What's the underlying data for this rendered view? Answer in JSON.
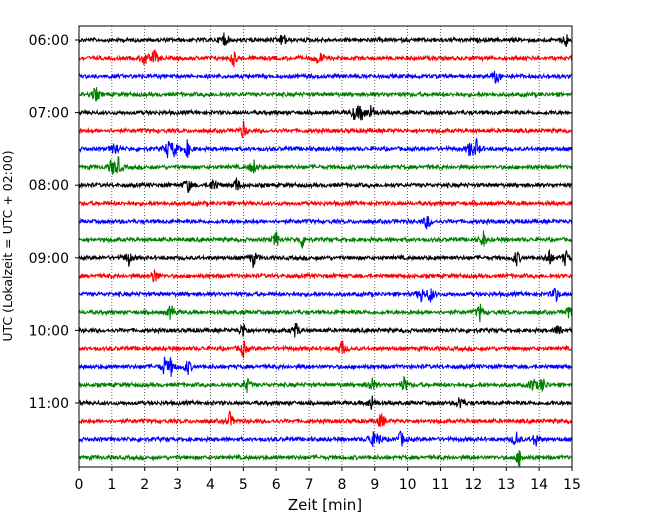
{
  "chart_data": {
    "type": "line",
    "title": "",
    "xlabel": "Zeit  [min]",
    "ylabel": "UTC (Lokalzeit = UTC + 02:00)",
    "xlim": [
      0,
      15
    ],
    "x_ticks": [
      "0",
      "1",
      "2",
      "3",
      "4",
      "5",
      "6",
      "7",
      "8",
      "9",
      "10",
      "11",
      "12",
      "13",
      "14",
      "15"
    ],
    "y_tick_labels": [
      "06:00",
      "07:00",
      "08:00",
      "09:00",
      "10:00",
      "11:00"
    ],
    "y_tick_trace_index": [
      0,
      4,
      8,
      12,
      16,
      20
    ],
    "trace_interval_min": 15,
    "grid": "vertical dotted lines at each minute",
    "trace_colors": [
      "#000000",
      "#ff0000",
      "#0000ff",
      "#008000"
    ],
    "series": [
      {
        "start": "06:00",
        "events_min": [
          4.4,
          6.2,
          14.8
        ]
      },
      {
        "start": "06:15",
        "events_min": [
          2.0,
          2.3,
          4.7,
          7.3
        ]
      },
      {
        "start": "06:30",
        "events_min": [
          12.7
        ]
      },
      {
        "start": "06:45",
        "events_min": [
          0.5
        ]
      },
      {
        "start": "07:00",
        "events_min": [
          8.4,
          8.6,
          8.9
        ]
      },
      {
        "start": "07:15",
        "events_min": [
          5.0
        ]
      },
      {
        "start": "07:30",
        "events_min": [
          1.1,
          2.7,
          2.9,
          3.3,
          11.9,
          12.1
        ]
      },
      {
        "start": "07:45",
        "events_min": [
          1.0,
          1.2,
          5.3
        ]
      },
      {
        "start": "08:00",
        "events_min": [
          3.3,
          4.1,
          4.8
        ]
      },
      {
        "start": "08:15",
        "events_min": []
      },
      {
        "start": "08:30",
        "events_min": [
          10.6
        ]
      },
      {
        "start": "08:45",
        "events_min": [
          6.0,
          6.8,
          12.3
        ]
      },
      {
        "start": "09:00",
        "events_min": [
          1.5,
          5.3,
          13.3,
          14.3,
          14.8
        ]
      },
      {
        "start": "09:15",
        "events_min": [
          2.3
        ]
      },
      {
        "start": "09:30",
        "events_min": [
          10.4,
          10.7,
          14.5
        ]
      },
      {
        "start": "09:45",
        "events_min": [
          2.8,
          12.2,
          14.9
        ]
      },
      {
        "start": "10:00",
        "events_min": [
          5.0,
          6.6,
          14.6
        ]
      },
      {
        "start": "10:15",
        "events_min": [
          5.0,
          8.0
        ]
      },
      {
        "start": "10:30",
        "events_min": [
          2.6,
          2.8,
          3.3
        ]
      },
      {
        "start": "10:45",
        "events_min": [
          5.1,
          8.9,
          9.9,
          13.8,
          14.1
        ]
      },
      {
        "start": "11:00",
        "events_min": [
          8.9,
          11.6
        ]
      },
      {
        "start": "11:15",
        "events_min": [
          4.6,
          9.2
        ]
      },
      {
        "start": "11:30",
        "events_min": [
          8.9,
          9.1,
          9.8,
          13.3,
          13.9
        ]
      },
      {
        "start": "11:45",
        "events_min": [
          13.4
        ]
      }
    ]
  }
}
